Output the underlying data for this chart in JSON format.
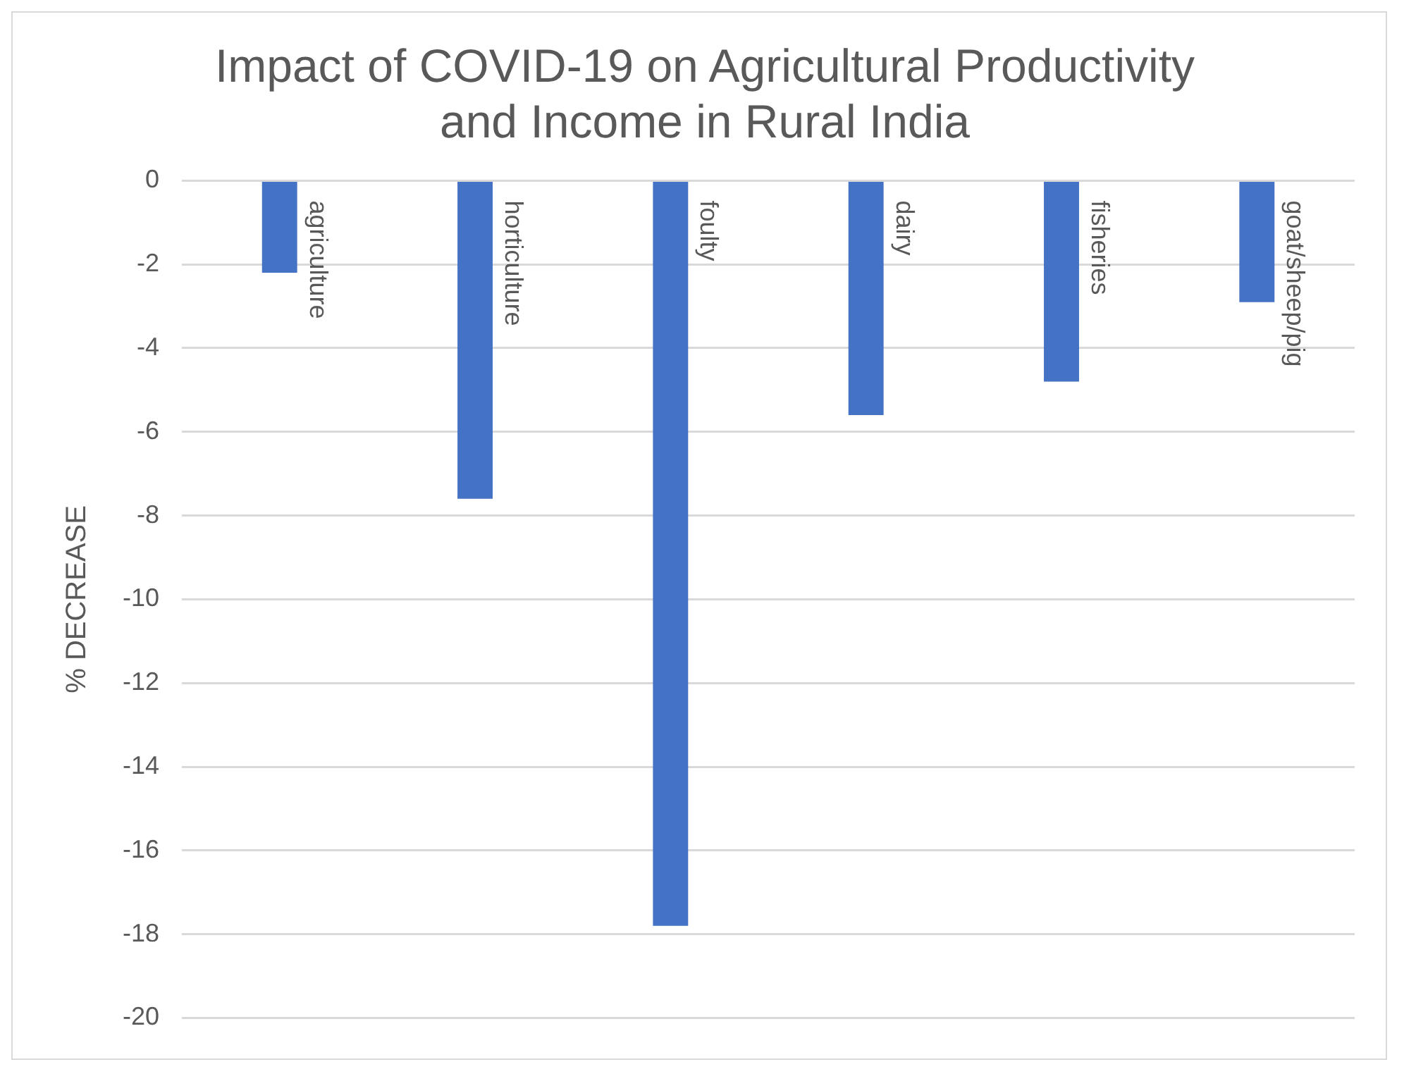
{
  "chart_data": {
    "type": "bar",
    "title": "Impact of COVID-19 on Agricultural Productivity and Income in Rural India",
    "ylabel": "% DECREASE",
    "categories": [
      "agriculture",
      "horticulture",
      "foulty",
      "dairy",
      "fisheries",
      "goat/sheep/pig"
    ],
    "values": [
      -2.2,
      -7.6,
      -17.8,
      -5.6,
      -4.8,
      -2.9
    ],
    "color": "#4472c4",
    "ylim": [
      -20,
      0
    ],
    "yticks": [
      0,
      -2,
      -4,
      -6,
      -8,
      -10,
      -12,
      -14,
      -16,
      -18,
      -20
    ],
    "grid": "y",
    "legend": false
  }
}
